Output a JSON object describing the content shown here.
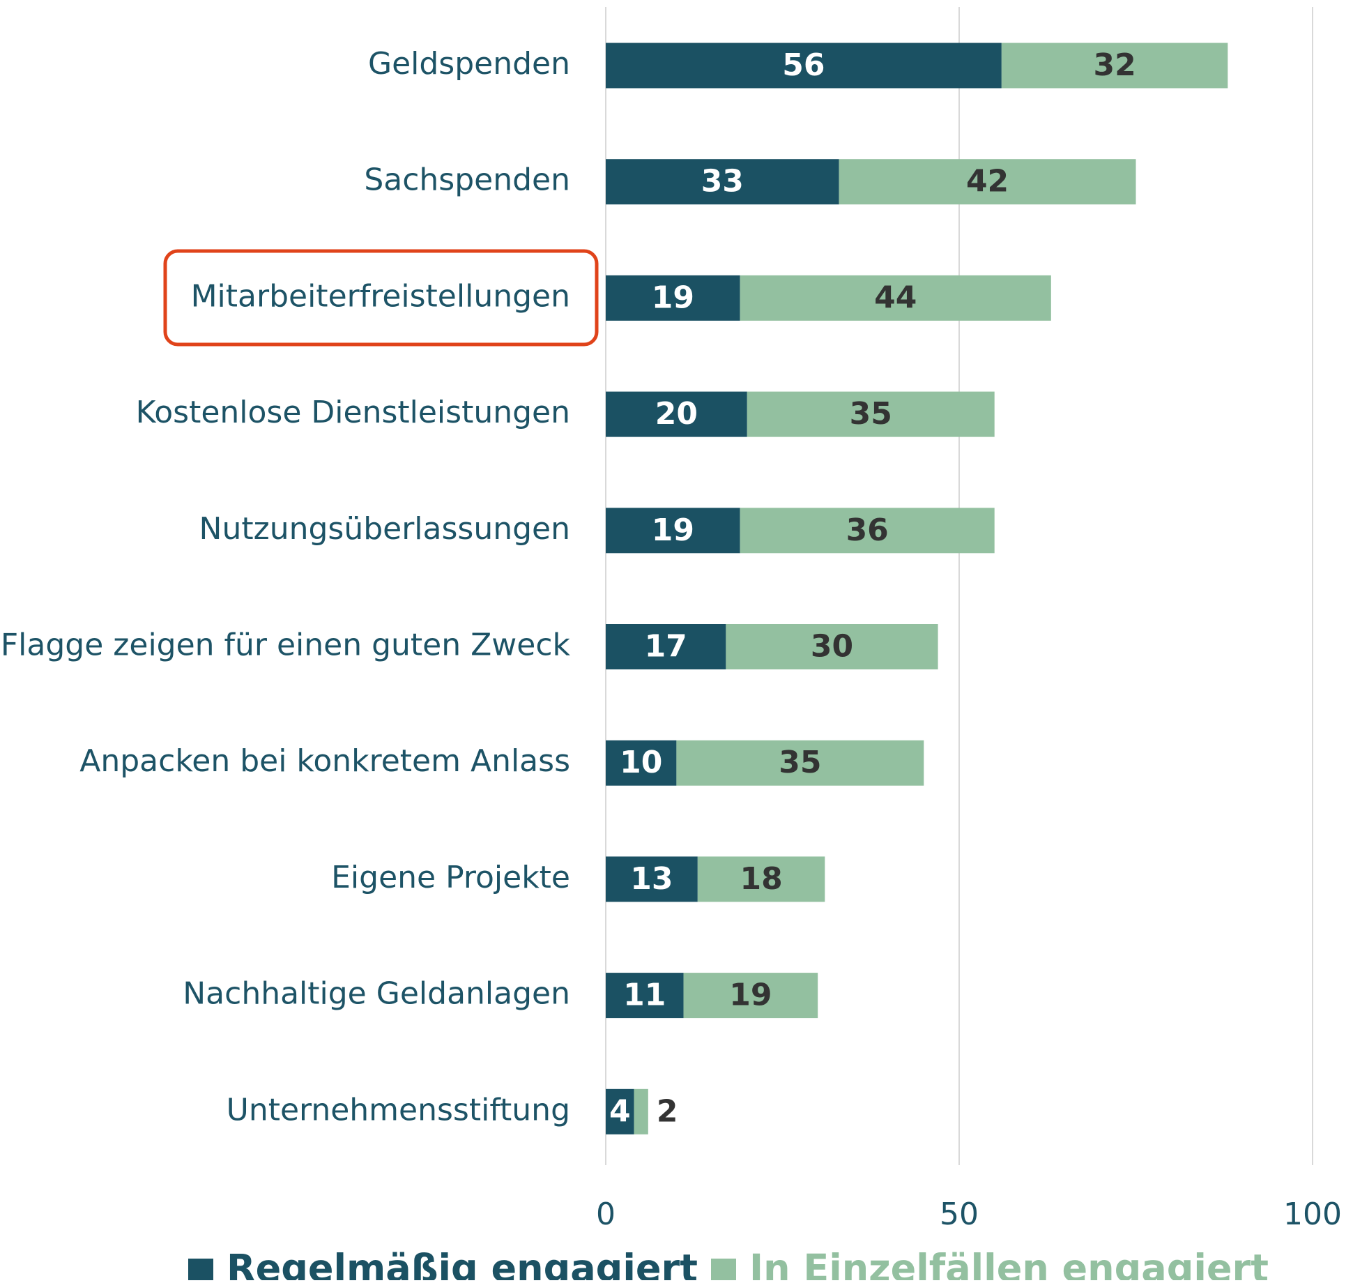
{
  "chart_data": {
    "type": "bar",
    "orientation": "horizontal",
    "stacked": true,
    "categories": [
      "Geldspenden",
      "Sachspenden",
      "Mitarbeiterfreistellungen",
      "Kostenlose Dienstleistungen",
      "Nutzungsüberlassungen",
      "Flagge zeigen für einen guten Zweck",
      "Anpacken bei konkretem Anlass",
      "Eigene Projekte",
      "Nachhaltige Geldanlagen",
      "Unternehmensstiftung"
    ],
    "series": [
      {
        "name": "Regelmäßig engagiert",
        "color": "#1b5163",
        "values": [
          56,
          33,
          19,
          20,
          19,
          17,
          10,
          13,
          11,
          4
        ]
      },
      {
        "name": "In Einzelfällen engagiert",
        "color": "#93c0a0",
        "values": [
          32,
          42,
          44,
          35,
          36,
          30,
          35,
          18,
          19,
          2
        ]
      }
    ],
    "xlim": [
      0,
      100
    ],
    "xticks": [
      0,
      50,
      100
    ],
    "grid": true,
    "legend": "bottom"
  }
}
